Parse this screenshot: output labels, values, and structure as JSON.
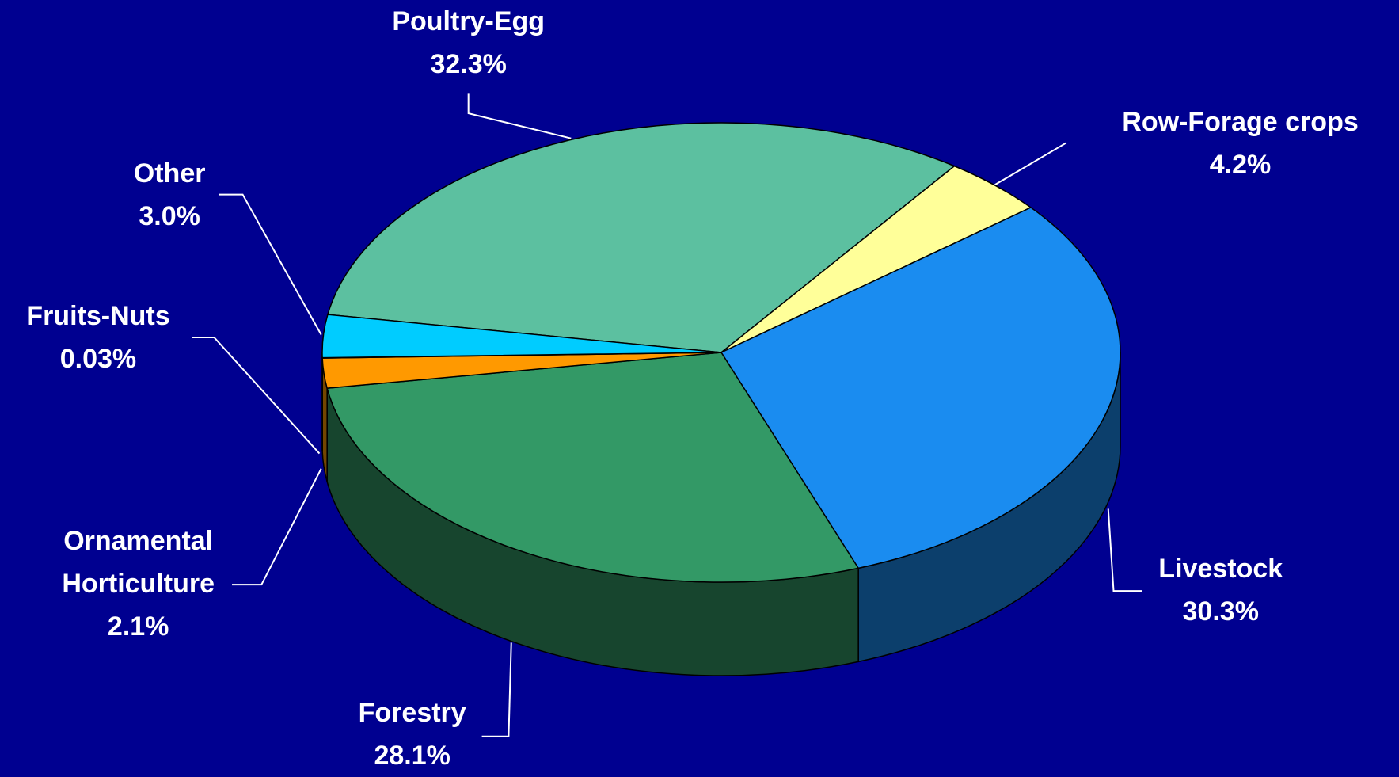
{
  "chart_data": {
    "type": "pie",
    "categories": [
      "Poultry-Egg",
      "Row-Forage crops",
      "Livestock",
      "Forestry",
      "Ornamental Horticulture",
      "Fruits-Nuts",
      "Other"
    ],
    "values": [
      32.3,
      4.2,
      30.3,
      28.1,
      2.1,
      0.03,
      3
    ],
    "value_labels": [
      "32.3%",
      "4.2%",
      "30.3%",
      "28.1%",
      "2.1%",
      "0.03%",
      "3.0%"
    ],
    "colors": [
      "#5cc0a0",
      "#ffff99",
      "#1a8cf0",
      "#339966",
      "#ff9900",
      "#cc6600",
      "#00ccff"
    ]
  }
}
